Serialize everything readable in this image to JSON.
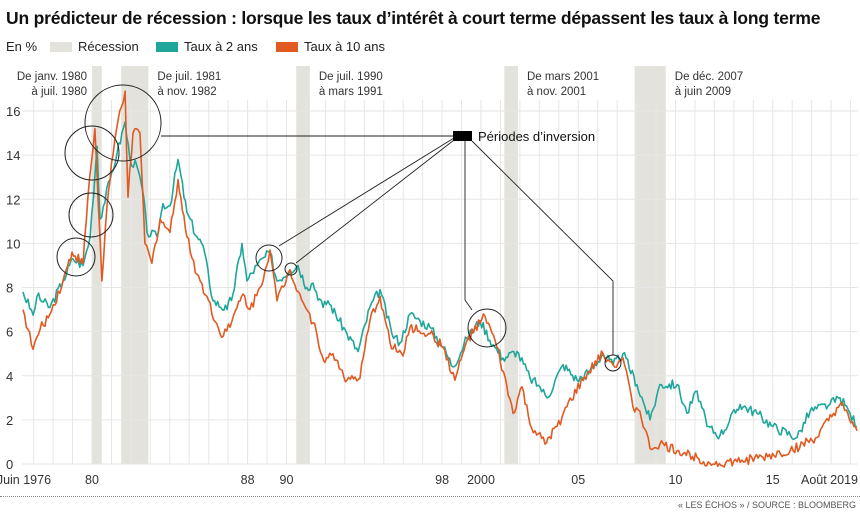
{
  "title": "Un prédicteur de récession : lorsque les taux d’intérêt à court terme dépassent les taux à long terme",
  "unit": "En %",
  "legend": {
    "recession": "Récession",
    "two_year": "Taux à 2 ans",
    "ten_year": "Taux à 10 ans"
  },
  "colors": {
    "recession": "#e4e2dc",
    "two_year": "#1fa69a",
    "ten_year": "#e05a22",
    "grid": "#e6e6e6"
  },
  "inversion_label": "Périodes d’inversion",
  "source": "« LES ÉCHOS » / SOURCE : BLOOMBERG",
  "chart_data": {
    "type": "line",
    "ylim": [
      0,
      17
    ],
    "xlim": [
      1976.4,
      2019.6
    ],
    "yticks": [
      "0",
      "2",
      "4",
      "6",
      "8",
      "10",
      "12",
      "14",
      "16"
    ],
    "xticks": [
      {
        "label": "Juin 1976",
        "x": 1976.5
      },
      {
        "label": "80",
        "x": 1980
      },
      {
        "label": "88",
        "x": 1988
      },
      {
        "label": "90",
        "x": 1990
      },
      {
        "label": "98",
        "x": 1998
      },
      {
        "label": "2000",
        "x": 2000
      },
      {
        "label": "05",
        "x": 2005
      },
      {
        "label": "10",
        "x": 2010
      },
      {
        "label": "15",
        "x": 2015
      },
      {
        "label": "Août 2019",
        "x": 2019.1
      }
    ],
    "grid": true,
    "recessions": [
      {
        "start": 1980.0,
        "end": 1980.5,
        "line1": "De janv. 1980",
        "line2": "à juil. 1980"
      },
      {
        "start": 1981.5,
        "end": 1982.9,
        "line1": "De juil. 1981",
        "line2": "à nov. 1982"
      },
      {
        "start": 1990.5,
        "end": 1991.2,
        "line1": "De juil. 1990",
        "line2": "à mars 1991"
      },
      {
        "start": 2001.2,
        "end": 2001.9,
        "line1": "De mars 2001",
        "line2": "à nov. 2001"
      },
      {
        "start": 2007.9,
        "end": 2009.5,
        "line1": "De déc. 2007",
        "line2": "à juin 2009"
      }
    ],
    "inversions": [
      1978.9,
      1979.9,
      1980.0,
      1981.6,
      1989.1,
      1990.2,
      2000.3,
      2006.8
    ],
    "series": [
      {
        "name": "Taux à 2 ans",
        "points": [
          [
            1976.45,
            7.8
          ],
          [
            1976.97,
            6.75
          ],
          [
            1977.17,
            7.6
          ],
          [
            1977.84,
            7.1
          ],
          [
            1978.51,
            8.3
          ],
          [
            1979.02,
            9.3
          ],
          [
            1979.54,
            9.0
          ],
          [
            1979.9,
            10.3
          ],
          [
            1980.26,
            14.4
          ],
          [
            1980.41,
            11.1
          ],
          [
            1980.93,
            12.9
          ],
          [
            1981.29,
            14.1
          ],
          [
            1981.7,
            15.5
          ],
          [
            1981.95,
            13.8
          ],
          [
            1982.31,
            13.5
          ],
          [
            1982.62,
            12.3
          ],
          [
            1982.83,
            10.5
          ],
          [
            1983.34,
            10.3
          ],
          [
            1983.65,
            11.8
          ],
          [
            1984.01,
            11.7
          ],
          [
            1984.42,
            13.8
          ],
          [
            1984.88,
            11.4
          ],
          [
            1985.4,
            10.3
          ],
          [
            1985.71,
            9.9
          ],
          [
            1986.22,
            7.4
          ],
          [
            1986.94,
            7.0
          ],
          [
            1987.25,
            7.7
          ],
          [
            1987.71,
            10.0
          ],
          [
            1987.97,
            8.3
          ],
          [
            1988.48,
            9.0
          ],
          [
            1989.15,
            9.6
          ],
          [
            1989.51,
            8.3
          ],
          [
            1990.18,
            8.8
          ],
          [
            1990.59,
            9.0
          ],
          [
            1991.05,
            8.0
          ],
          [
            1991.36,
            8.2
          ],
          [
            1991.88,
            7.1
          ],
          [
            1992.13,
            7.4
          ],
          [
            1993.11,
            5.9
          ],
          [
            1993.68,
            5.1
          ],
          [
            1994.29,
            7.1
          ],
          [
            1994.81,
            7.9
          ],
          [
            1995.42,
            5.9
          ],
          [
            1995.84,
            5.5
          ],
          [
            1996.35,
            6.8
          ],
          [
            1996.86,
            6.5
          ],
          [
            1997.38,
            6.2
          ],
          [
            1998.05,
            5.3
          ],
          [
            1998.56,
            4.4
          ],
          [
            1999.28,
            5.7
          ],
          [
            1999.95,
            6.5
          ],
          [
            2000.62,
            5.4
          ],
          [
            2001.13,
            4.8
          ],
          [
            2001.85,
            5.1
          ],
          [
            2002.52,
            3.9
          ],
          [
            2003.03,
            3.5
          ],
          [
            2003.39,
            3.0
          ],
          [
            2004.22,
            4.5
          ],
          [
            2004.94,
            3.8
          ],
          [
            2005.6,
            4.2
          ],
          [
            2006.27,
            5.0
          ],
          [
            2006.79,
            4.5
          ],
          [
            2007.3,
            5.0
          ],
          [
            2008.02,
            3.6
          ],
          [
            2008.69,
            2.0
          ],
          [
            2009.2,
            3.6
          ],
          [
            2010.08,
            3.6
          ],
          [
            2010.59,
            2.3
          ],
          [
            2011.11,
            3.3
          ],
          [
            2011.62,
            1.7
          ],
          [
            2012.29,
            1.3
          ],
          [
            2013.32,
            2.7
          ],
          [
            2014.19,
            2.3
          ],
          [
            2015.01,
            1.7
          ],
          [
            2016.25,
            1.2
          ],
          [
            2016.92,
            2.4
          ],
          [
            2017.94,
            2.7
          ],
          [
            2018.46,
            3.0
          ],
          [
            2018.97,
            2.3
          ],
          [
            2019.33,
            1.7
          ]
        ]
      },
      {
        "name": "Taux à 10 ans",
        "points": [
          [
            1976.45,
            7.0
          ],
          [
            1976.97,
            5.2
          ],
          [
            1977.33,
            6.1
          ],
          [
            1977.84,
            6.8
          ],
          [
            1978.51,
            8.3
          ],
          [
            1978.97,
            9.6
          ],
          [
            1979.54,
            9.1
          ],
          [
            1979.79,
            12.1
          ],
          [
            1980.15,
            15.2
          ],
          [
            1980.51,
            8.3
          ],
          [
            1980.77,
            11.7
          ],
          [
            1981.08,
            14.0
          ],
          [
            1981.34,
            15.6
          ],
          [
            1981.7,
            16.9
          ],
          [
            1981.85,
            12.1
          ],
          [
            1982.11,
            15.0
          ],
          [
            1982.47,
            15.0
          ],
          [
            1982.72,
            10.0
          ],
          [
            1983.08,
            9.1
          ],
          [
            1983.5,
            11.1
          ],
          [
            1984.01,
            10.5
          ],
          [
            1984.42,
            12.9
          ],
          [
            1984.88,
            10.3
          ],
          [
            1985.4,
            8.6
          ],
          [
            1985.91,
            7.6
          ],
          [
            1986.58,
            5.9
          ],
          [
            1987.1,
            6.2
          ],
          [
            1987.46,
            7.1
          ],
          [
            1987.76,
            7.7
          ],
          [
            1988.12,
            7.0
          ],
          [
            1988.64,
            8.0
          ],
          [
            1989.15,
            9.7
          ],
          [
            1989.51,
            7.4
          ],
          [
            1990.18,
            8.8
          ],
          [
            1990.69,
            7.7
          ],
          [
            1991.36,
            6.4
          ],
          [
            1991.98,
            4.6
          ],
          [
            1992.39,
            5.0
          ],
          [
            1993.11,
            3.8
          ],
          [
            1993.78,
            3.9
          ],
          [
            1994.29,
            6.5
          ],
          [
            1994.81,
            7.6
          ],
          [
            1995.32,
            5.5
          ],
          [
            1995.99,
            4.9
          ],
          [
            1996.35,
            6.2
          ],
          [
            1997.38,
            5.9
          ],
          [
            1998.05,
            5.3
          ],
          [
            1998.66,
            3.8
          ],
          [
            1999.28,
            5.6
          ],
          [
            2000.21,
            6.7
          ],
          [
            2000.82,
            5.3
          ],
          [
            2001.65,
            2.3
          ],
          [
            2002.11,
            3.5
          ],
          [
            2002.52,
            1.8
          ],
          [
            2003.29,
            0.9
          ],
          [
            2003.91,
            1.7
          ],
          [
            2004.42,
            2.6
          ],
          [
            2005.24,
            3.8
          ],
          [
            2006.27,
            5.0
          ],
          [
            2006.79,
            4.5
          ],
          [
            2007.3,
            4.8
          ],
          [
            2007.81,
            2.6
          ],
          [
            2008.17,
            2.4
          ],
          [
            2008.69,
            0.7
          ],
          [
            2009.2,
            0.9
          ],
          [
            2010.08,
            0.6
          ],
          [
            2011.11,
            0.3
          ],
          [
            2011.93,
            0.0
          ],
          [
            2013.16,
            0.1
          ],
          [
            2014.5,
            0.3
          ],
          [
            2015.89,
            0.6
          ],
          [
            2017.28,
            1.2
          ],
          [
            2018.46,
            2.7
          ],
          [
            2019.33,
            1.5
          ]
        ]
      }
    ]
  }
}
